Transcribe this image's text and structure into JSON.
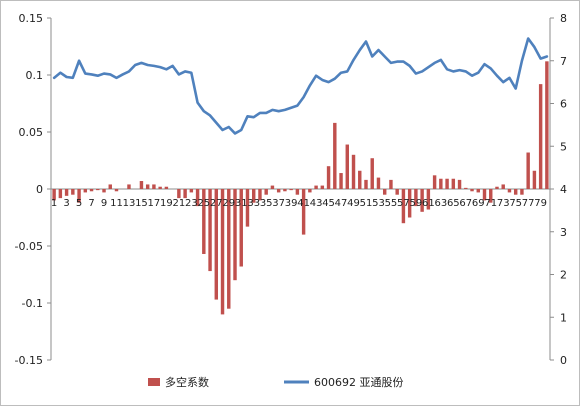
{
  "chart_data": {
    "type": "bar",
    "title": "",
    "xlabel": "",
    "ylabel": "",
    "categories": [
      1,
      2,
      3,
      4,
      5,
      6,
      7,
      8,
      9,
      10,
      11,
      12,
      13,
      14,
      15,
      16,
      17,
      18,
      19,
      20,
      21,
      22,
      23,
      24,
      25,
      26,
      27,
      28,
      29,
      30,
      31,
      32,
      33,
      34,
      35,
      36,
      37,
      38,
      39,
      40,
      41,
      42,
      43,
      44,
      45,
      46,
      47,
      48,
      49,
      50,
      51,
      52,
      53,
      54,
      55,
      56,
      57,
      58,
      59,
      60,
      61,
      62,
      63,
      64,
      65,
      66,
      67,
      68,
      69,
      70,
      71,
      72,
      73,
      74,
      75,
      76,
      77,
      78,
      79,
      80
    ],
    "category_labels": [
      "1",
      "3",
      "5",
      "7",
      "9",
      "11",
      "13",
      "15",
      "17",
      "19",
      "21",
      "23",
      "25",
      "27",
      "29",
      "31",
      "33",
      "35",
      "37",
      "39",
      "41",
      "43",
      "45",
      "47",
      "49",
      "51",
      "53",
      "55",
      "57",
      "59",
      "61",
      "63",
      "65",
      "67",
      "69",
      "71",
      "73",
      "75",
      "77",
      "79"
    ],
    "ylim_left": [
      -0.15,
      0.15
    ],
    "ylim_right": [
      0,
      8
    ],
    "yticks_left": [
      "0.15",
      "0.1",
      "0.05",
      "0",
      "-0.05",
      "-0.1",
      "-0.15"
    ],
    "yticks_right": [
      "8",
      "7",
      "6",
      "5",
      "4",
      "3",
      "2",
      "1",
      "0"
    ],
    "legend_position": "bottom",
    "series": [
      {
        "name": "多空系数",
        "type": "bar",
        "axis": "left",
        "color": "#c0504d",
        "values": [
          -0.01,
          -0.008,
          -0.006,
          -0.005,
          -0.012,
          -0.003,
          -0.002,
          -0.001,
          -0.003,
          0.004,
          -0.002,
          0,
          0.004,
          0,
          0.007,
          0.004,
          0.004,
          0.002,
          0.002,
          0,
          -0.008,
          -0.008,
          -0.003,
          -0.015,
          -0.057,
          -0.072,
          -0.097,
          -0.11,
          -0.105,
          -0.08,
          -0.068,
          -0.033,
          -0.012,
          -0.01,
          -0.005,
          0.003,
          -0.003,
          -0.002,
          -0.001,
          -0.005,
          -0.04,
          -0.003,
          0.003,
          0.003,
          0.02,
          0.058,
          0.014,
          0.039,
          0.03,
          0.016,
          0.008,
          0.027,
          0.01,
          -0.005,
          0.008,
          -0.005,
          -0.03,
          -0.025,
          -0.015,
          -0.02,
          -0.018,
          0.012,
          0.009,
          0.009,
          0.009,
          0.008,
          0.001,
          -0.002,
          -0.003,
          -0.01,
          -0.012,
          0.002,
          0.004,
          -0.003,
          -0.005,
          -0.005,
          0.032,
          0.016,
          0.092,
          0.112
        ]
      },
      {
        "name": "600692 亚通股份",
        "type": "line",
        "axis": "right",
        "color": "#4f81bd",
        "values": [
          6.6,
          6.72,
          6.62,
          6.6,
          7.0,
          6.7,
          6.68,
          6.65,
          6.7,
          6.68,
          6.6,
          6.68,
          6.75,
          6.9,
          6.95,
          6.9,
          6.88,
          6.85,
          6.8,
          6.88,
          6.68,
          6.75,
          6.72,
          6.02,
          5.82,
          5.72,
          5.55,
          5.38,
          5.45,
          5.3,
          5.38,
          5.7,
          5.68,
          5.78,
          5.78,
          5.85,
          5.82,
          5.85,
          5.9,
          5.95,
          6.15,
          6.42,
          6.65,
          6.55,
          6.5,
          6.58,
          6.72,
          6.75,
          7.02,
          7.25,
          7.45,
          7.1,
          7.25,
          7.1,
          6.95,
          6.98,
          6.98,
          6.88,
          6.7,
          6.75,
          6.85,
          6.95,
          7.02,
          6.8,
          6.75,
          6.78,
          6.75,
          6.65,
          6.72,
          6.92,
          6.82,
          6.65,
          6.5,
          6.6,
          6.35,
          7.0,
          7.52,
          7.32,
          7.05,
          7.1
        ]
      }
    ]
  }
}
